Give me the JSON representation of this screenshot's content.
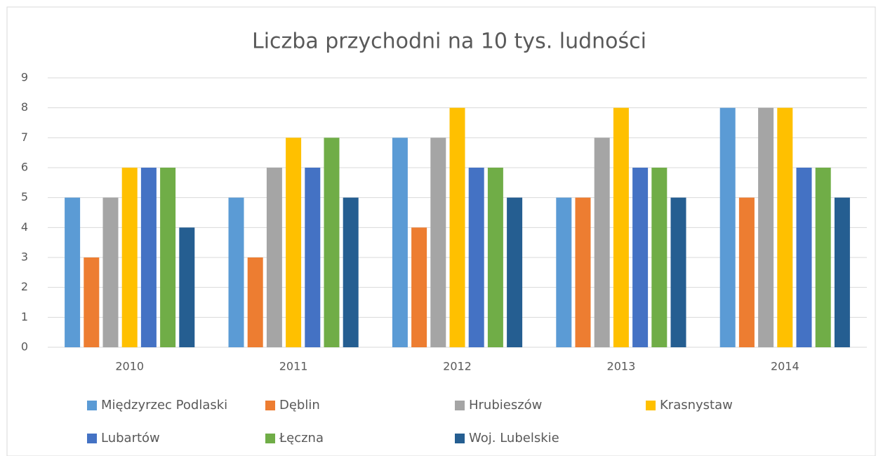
{
  "chart_data": {
    "type": "bar",
    "title": "Liczba przychodni na 10 tys. ludności",
    "categories": [
      "2010",
      "2011",
      "2012",
      "2013",
      "2014"
    ],
    "series": [
      {
        "name": "Międzyrzec Podlaski",
        "color": "#5b9bd5",
        "values": [
          5,
          5,
          7,
          5,
          8
        ]
      },
      {
        "name": "Dęblin",
        "color": "#ed7d31",
        "values": [
          3,
          3,
          4,
          5,
          5
        ]
      },
      {
        "name": "Hrubieszów",
        "color": "#a5a5a5",
        "values": [
          5,
          6,
          7,
          7,
          8
        ]
      },
      {
        "name": "Krasnystaw",
        "color": "#ffc000",
        "values": [
          6,
          7,
          8,
          8,
          8
        ]
      },
      {
        "name": "Lubartów",
        "color": "#4472c4",
        "values": [
          6,
          6,
          6,
          6,
          6
        ]
      },
      {
        "name": "Łęczna",
        "color": "#70ad47",
        "values": [
          6,
          7,
          6,
          6,
          6
        ]
      },
      {
        "name": "Woj. Lubelskie",
        "color": "#255e91",
        "values": [
          4,
          5,
          5,
          5,
          5
        ]
      }
    ],
    "ylim": [
      0,
      9
    ],
    "yticks": [
      0,
      1,
      2,
      3,
      4,
      5,
      6,
      7,
      8,
      9
    ],
    "grid": true,
    "legend": "bottom"
  }
}
